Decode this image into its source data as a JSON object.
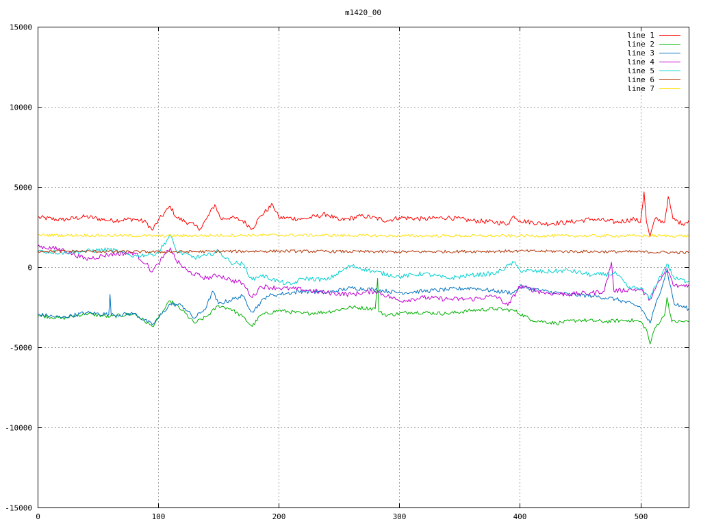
{
  "chart_data": {
    "type": "line",
    "title": "m1420_00",
    "xlabel": "",
    "ylabel": "",
    "xlim": [
      0,
      540
    ],
    "ylim": [
      -15000,
      15000
    ],
    "x_ticks": [
      0,
      100,
      200,
      300,
      400,
      500
    ],
    "y_ticks": [
      -15000,
      -10000,
      -5000,
      0,
      5000,
      10000,
      15000
    ],
    "grid": true,
    "legend_position": "top-right",
    "series": [
      {
        "name": "line 1",
        "color": "#ff0000",
        "anchors": [
          [
            0,
            3100
          ],
          [
            20,
            2950
          ],
          [
            40,
            3150
          ],
          [
            60,
            2900
          ],
          [
            80,
            3000
          ],
          [
            90,
            2800
          ],
          [
            95,
            2300
          ],
          [
            100,
            2900
          ],
          [
            110,
            3800
          ],
          [
            115,
            3100
          ],
          [
            130,
            2600
          ],
          [
            135,
            2400
          ],
          [
            140,
            3000
          ],
          [
            147,
            3900
          ],
          [
            152,
            3000
          ],
          [
            160,
            3100
          ],
          [
            170,
            2900
          ],
          [
            178,
            2400
          ],
          [
            185,
            3200
          ],
          [
            195,
            3900
          ],
          [
            200,
            3100
          ],
          [
            220,
            3000
          ],
          [
            240,
            3300
          ],
          [
            250,
            2900
          ],
          [
            270,
            3200
          ],
          [
            290,
            2900
          ],
          [
            300,
            3100
          ],
          [
            320,
            3000
          ],
          [
            340,
            3100
          ],
          [
            360,
            2900
          ],
          [
            380,
            2800
          ],
          [
            390,
            2700
          ],
          [
            395,
            3200
          ],
          [
            400,
            2900
          ],
          [
            420,
            2700
          ],
          [
            440,
            2800
          ],
          [
            460,
            3000
          ],
          [
            480,
            2800
          ],
          [
            495,
            3000
          ],
          [
            500,
            2800
          ],
          [
            503,
            4700
          ],
          [
            505,
            2800
          ],
          [
            508,
            1900
          ],
          [
            512,
            3000
          ],
          [
            520,
            2800
          ],
          [
            523,
            4400
          ],
          [
            527,
            3000
          ],
          [
            535,
            2700
          ],
          [
            540,
            2900
          ]
        ],
        "noise": 150
      },
      {
        "name": "line 2",
        "color": "#00b000",
        "anchors": [
          [
            0,
            -3000
          ],
          [
            20,
            -3200
          ],
          [
            40,
            -2900
          ],
          [
            60,
            -3100
          ],
          [
            80,
            -2900
          ],
          [
            95,
            -3700
          ],
          [
            100,
            -3200
          ],
          [
            110,
            -2100
          ],
          [
            120,
            -2700
          ],
          [
            130,
            -3500
          ],
          [
            140,
            -3100
          ],
          [
            150,
            -2400
          ],
          [
            160,
            -2600
          ],
          [
            170,
            -3100
          ],
          [
            178,
            -3700
          ],
          [
            185,
            -3000
          ],
          [
            200,
            -2700
          ],
          [
            220,
            -2900
          ],
          [
            240,
            -2800
          ],
          [
            260,
            -2500
          ],
          [
            280,
            -2600
          ],
          [
            282,
            -700
          ],
          [
            283,
            -2800
          ],
          [
            290,
            -3000
          ],
          [
            310,
            -2800
          ],
          [
            340,
            -2900
          ],
          [
            360,
            -2700
          ],
          [
            380,
            -2600
          ],
          [
            395,
            -2700
          ],
          [
            410,
            -3300
          ],
          [
            430,
            -3500
          ],
          [
            450,
            -3300
          ],
          [
            470,
            -3400
          ],
          [
            490,
            -3300
          ],
          [
            500,
            -3400
          ],
          [
            505,
            -3900
          ],
          [
            508,
            -4800
          ],
          [
            512,
            -3800
          ],
          [
            520,
            -3000
          ],
          [
            522,
            -1900
          ],
          [
            526,
            -3400
          ],
          [
            540,
            -3400
          ]
        ],
        "noise": 120
      },
      {
        "name": "line 3",
        "color": "#0070c0",
        "anchors": [
          [
            0,
            -2950
          ],
          [
            20,
            -3150
          ],
          [
            40,
            -2850
          ],
          [
            59,
            -2950
          ],
          [
            60,
            -1700
          ],
          [
            61,
            -3000
          ],
          [
            80,
            -2900
          ],
          [
            95,
            -3600
          ],
          [
            100,
            -3200
          ],
          [
            110,
            -2300
          ],
          [
            120,
            -2400
          ],
          [
            130,
            -3200
          ],
          [
            140,
            -2500
          ],
          [
            145,
            -1500
          ],
          [
            150,
            -2300
          ],
          [
            170,
            -1800
          ],
          [
            178,
            -2800
          ],
          [
            190,
            -1800
          ],
          [
            200,
            -1700
          ],
          [
            220,
            -1500
          ],
          [
            240,
            -1600
          ],
          [
            260,
            -1300
          ],
          [
            280,
            -1400
          ],
          [
            300,
            -1600
          ],
          [
            320,
            -1500
          ],
          [
            340,
            -1400
          ],
          [
            360,
            -1300
          ],
          [
            380,
            -1500
          ],
          [
            395,
            -1600
          ],
          [
            400,
            -1200
          ],
          [
            420,
            -1500
          ],
          [
            440,
            -1700
          ],
          [
            460,
            -1800
          ],
          [
            480,
            -2000
          ],
          [
            500,
            -2500
          ],
          [
            508,
            -3500
          ],
          [
            512,
            -2500
          ],
          [
            522,
            -200
          ],
          [
            528,
            -2300
          ],
          [
            540,
            -2600
          ]
        ],
        "noise": 130
      },
      {
        "name": "line 4",
        "color": "#c000d0",
        "anchors": [
          [
            0,
            1300
          ],
          [
            20,
            1100
          ],
          [
            40,
            500
          ],
          [
            60,
            800
          ],
          [
            80,
            900
          ],
          [
            90,
            200
          ],
          [
            95,
            -300
          ],
          [
            100,
            200
          ],
          [
            110,
            1200
          ],
          [
            115,
            400
          ],
          [
            125,
            -300
          ],
          [
            140,
            -700
          ],
          [
            150,
            -500
          ],
          [
            160,
            -800
          ],
          [
            170,
            -1000
          ],
          [
            178,
            -1900
          ],
          [
            185,
            -1200
          ],
          [
            200,
            -1300
          ],
          [
            220,
            -1400
          ],
          [
            240,
            -1600
          ],
          [
            260,
            -1700
          ],
          [
            280,
            -1500
          ],
          [
            300,
            -2100
          ],
          [
            320,
            -1900
          ],
          [
            340,
            -2000
          ],
          [
            360,
            -2000
          ],
          [
            380,
            -1800
          ],
          [
            390,
            -2400
          ],
          [
            400,
            -1200
          ],
          [
            420,
            -1600
          ],
          [
            440,
            -1700
          ],
          [
            460,
            -1600
          ],
          [
            470,
            -1500
          ],
          [
            476,
            300
          ],
          [
            478,
            -1500
          ],
          [
            490,
            -1400
          ],
          [
            500,
            -1400
          ],
          [
            508,
            -2000
          ],
          [
            512,
            -1400
          ],
          [
            522,
            -100
          ],
          [
            528,
            -1200
          ],
          [
            540,
            -1100
          ]
        ],
        "noise": 150
      },
      {
        "name": "line 5",
        "color": "#00d0d0",
        "anchors": [
          [
            0,
            1000
          ],
          [
            20,
            900
          ],
          [
            40,
            1000
          ],
          [
            60,
            1100
          ],
          [
            80,
            700
          ],
          [
            95,
            800
          ],
          [
            100,
            900
          ],
          [
            110,
            2000
          ],
          [
            115,
            1000
          ],
          [
            130,
            600
          ],
          [
            140,
            700
          ],
          [
            150,
            1000
          ],
          [
            160,
            300
          ],
          [
            170,
            200
          ],
          [
            178,
            -800
          ],
          [
            185,
            -500
          ],
          [
            200,
            -900
          ],
          [
            210,
            -1100
          ],
          [
            220,
            -700
          ],
          [
            240,
            -800
          ],
          [
            260,
            100
          ],
          [
            280,
            -300
          ],
          [
            300,
            -600
          ],
          [
            320,
            -400
          ],
          [
            340,
            -700
          ],
          [
            360,
            -500
          ],
          [
            380,
            -400
          ],
          [
            395,
            300
          ],
          [
            400,
            -200
          ],
          [
            420,
            -300
          ],
          [
            440,
            -200
          ],
          [
            460,
            -500
          ],
          [
            480,
            -400
          ],
          [
            490,
            -1300
          ],
          [
            500,
            -1300
          ],
          [
            508,
            -2000
          ],
          [
            512,
            -1200
          ],
          [
            522,
            200
          ],
          [
            528,
            -700
          ],
          [
            540,
            -900
          ]
        ],
        "noise": 140
      },
      {
        "name": "line 6",
        "color": "#b03000",
        "anchors": [
          [
            0,
            1000
          ],
          [
            100,
            950
          ],
          [
            200,
            1000
          ],
          [
            300,
            950
          ],
          [
            400,
            1000
          ],
          [
            500,
            950
          ],
          [
            540,
            900
          ]
        ],
        "noise": 90
      },
      {
        "name": "line 7",
        "color": "#ffe000",
        "anchors": [
          [
            0,
            2000
          ],
          [
            100,
            1950
          ],
          [
            200,
            2000
          ],
          [
            300,
            1950
          ],
          [
            400,
            1950
          ],
          [
            500,
            1950
          ],
          [
            540,
            1950
          ]
        ],
        "noise": 90
      }
    ]
  }
}
